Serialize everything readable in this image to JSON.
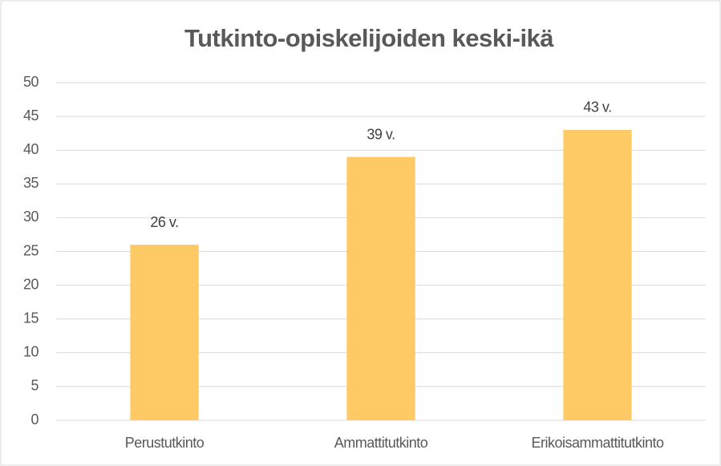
{
  "chart_data": {
    "type": "bar",
    "title": "Tutkinto-opiskelijoiden keski-ikä",
    "categories": [
      "Perustutkinto",
      "Ammattitutkinto",
      "Erikoisammattitutkinto"
    ],
    "values": [
      26,
      39,
      43
    ],
    "value_labels": [
      "26 v.",
      "39 v.",
      "43 v."
    ],
    "color": "#ffca66",
    "ylim": [
      0,
      50
    ],
    "yticks": [
      0,
      5,
      10,
      15,
      20,
      25,
      30,
      35,
      40,
      45,
      50
    ],
    "grid": true
  }
}
